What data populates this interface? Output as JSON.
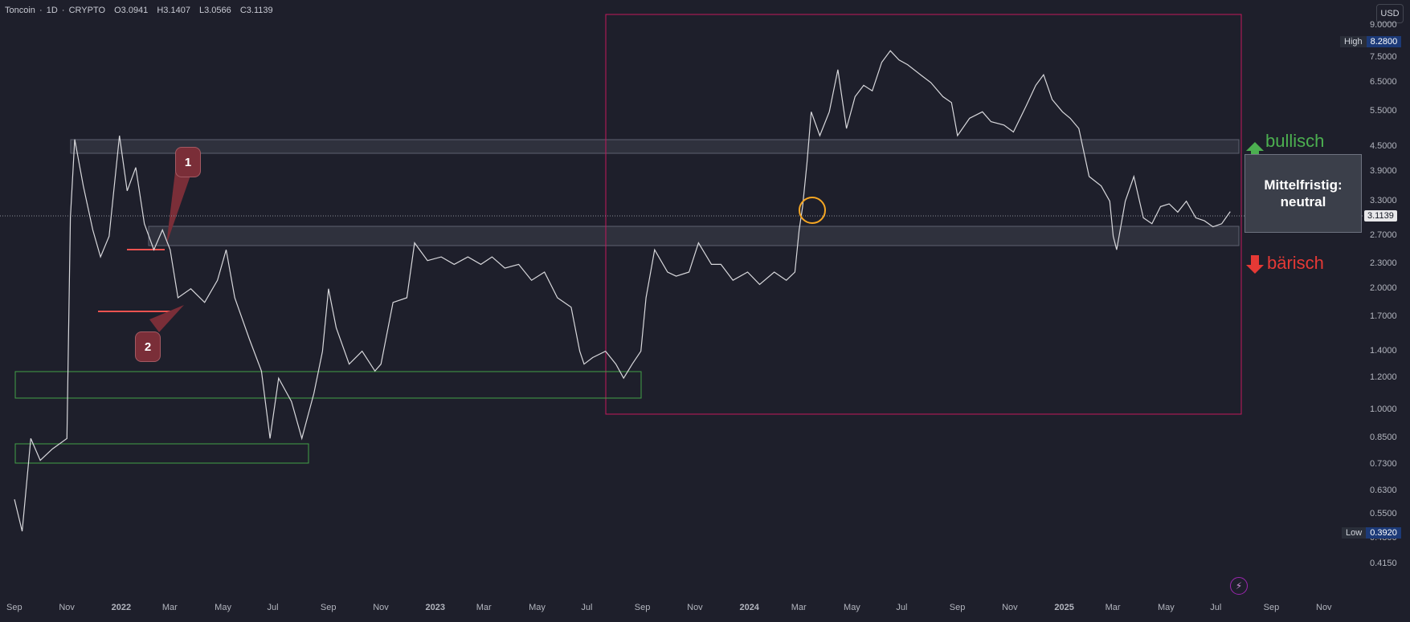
{
  "header": {
    "symbol": "Toncoin",
    "interval": "1D",
    "exchange": "CRYPTO",
    "open": "O3.0941",
    "high": "H3.1407",
    "low": "L3.0566",
    "close": "C3.1139"
  },
  "currency_button": "USD",
  "price_axis": {
    "labels": [
      "9.0000",
      "7.5000",
      "6.5000",
      "5.5000",
      "4.5000",
      "3.9000",
      "3.3000",
      "2.7000",
      "2.3000",
      "2.0000",
      "1.7000",
      "1.4000",
      "1.2000",
      "1.0000",
      "0.8500",
      "0.7300",
      "0.6300",
      "0.5500",
      "0.4800",
      "0.4150"
    ],
    "current_price": "3.1139",
    "high_label": "High",
    "high_value": "8.2800",
    "low_label": "Low",
    "low_value": "0.3920"
  },
  "time_axis": {
    "labels": [
      "Sep",
      "Nov",
      "2022",
      "Mar",
      "May",
      "Jul",
      "Sep",
      "Nov",
      "2023",
      "Mar",
      "May",
      "Jul",
      "Sep",
      "Nov",
      "2024",
      "Mar",
      "May",
      "Jul",
      "Sep",
      "Nov",
      "2025",
      "Mar",
      "May",
      "Jul",
      "Sep",
      "Nov"
    ],
    "bold": [
      "2022",
      "2023",
      "2024",
      "2025"
    ]
  },
  "annotations": {
    "callout_1": "1",
    "callout_2": "2",
    "bullish_label": "bullisch",
    "bearish_label": "bärisch",
    "neutral_line1": "Mittelfristig:",
    "neutral_line2": "neutral"
  },
  "colors": {
    "background": "#1e1f2b",
    "price_line": "#d8d8dc",
    "magenta_box": "#c2185b",
    "green_box": "#43a047",
    "red_line": "#ef5350",
    "orange_circle": "#f5a623",
    "bullish": "#4caf50",
    "bearish": "#e53935"
  },
  "icons": {
    "bullish_arrow": "arrow-up-icon",
    "bearish_arrow": "arrow-down-icon",
    "bolt": "bolt-icon"
  },
  "chart_data": {
    "type": "line",
    "title": "",
    "scale": "log",
    "y_range": [
      0.392,
      9.0
    ],
    "x_range": [
      "2021-09",
      "2025-11"
    ],
    "series": [
      {
        "points": [
          [
            "2021-09-01",
            0.6
          ],
          [
            "2021-09-10",
            0.5
          ],
          [
            "2021-09-20",
            0.85
          ],
          [
            "2021-10-01",
            0.75
          ],
          [
            "2021-10-15",
            0.8
          ],
          [
            "2021-11-01",
            0.85
          ],
          [
            "2021-11-05",
            3.0
          ],
          [
            "2021-11-10",
            4.7
          ],
          [
            "2021-11-20",
            3.6
          ],
          [
            "2021-12-01",
            2.8
          ],
          [
            "2021-12-10",
            2.4
          ],
          [
            "2021-12-20",
            2.7
          ],
          [
            "2022-01-01",
            4.8
          ],
          [
            "2022-01-10",
            3.5
          ],
          [
            "2022-01-20",
            4.0
          ],
          [
            "2022-01-30",
            2.9
          ],
          [
            "2022-02-10",
            2.5
          ],
          [
            "2022-02-20",
            2.8
          ],
          [
            "2022-03-01",
            2.5
          ],
          [
            "2022-03-10",
            1.9
          ],
          [
            "2022-03-25",
            2.0
          ],
          [
            "2022-04-10",
            1.85
          ],
          [
            "2022-04-25",
            2.1
          ],
          [
            "2022-05-05",
            2.5
          ],
          [
            "2022-05-15",
            1.9
          ],
          [
            "2022-06-01",
            1.5
          ],
          [
            "2022-06-15",
            1.25
          ],
          [
            "2022-06-25",
            0.85
          ],
          [
            "2022-07-05",
            1.2
          ],
          [
            "2022-07-20",
            1.05
          ],
          [
            "2022-08-01",
            0.85
          ],
          [
            "2022-08-15",
            1.1
          ],
          [
            "2022-08-25",
            1.4
          ],
          [
            "2022-09-01",
            2.0
          ],
          [
            "2022-09-10",
            1.6
          ],
          [
            "2022-09-25",
            1.3
          ],
          [
            "2022-10-10",
            1.4
          ],
          [
            "2022-10-25",
            1.25
          ],
          [
            "2022-11-01",
            1.3
          ],
          [
            "2022-11-15",
            1.85
          ],
          [
            "2022-12-01",
            1.9
          ],
          [
            "2022-12-10",
            2.6
          ],
          [
            "2022-12-25",
            2.35
          ],
          [
            "2023-01-10",
            2.4
          ],
          [
            "2023-01-25",
            2.3
          ],
          [
            "2023-02-10",
            2.4
          ],
          [
            "2023-02-25",
            2.3
          ],
          [
            "2023-03-10",
            2.4
          ],
          [
            "2023-03-25",
            2.25
          ],
          [
            "2023-04-10",
            2.3
          ],
          [
            "2023-04-25",
            2.1
          ],
          [
            "2023-05-10",
            2.2
          ],
          [
            "2023-05-25",
            1.9
          ],
          [
            "2023-06-10",
            1.8
          ],
          [
            "2023-06-20",
            1.4
          ],
          [
            "2023-06-25",
            1.3
          ],
          [
            "2023-07-05",
            1.35
          ],
          [
            "2023-07-20",
            1.4
          ],
          [
            "2023-08-01",
            1.3
          ],
          [
            "2023-08-10",
            1.2
          ],
          [
            "2023-08-20",
            1.3
          ],
          [
            "2023-08-30",
            1.4
          ],
          [
            "2023-09-05",
            1.9
          ],
          [
            "2023-09-15",
            2.5
          ],
          [
            "2023-09-30",
            2.2
          ],
          [
            "2023-10-10",
            2.15
          ],
          [
            "2023-10-25",
            2.2
          ],
          [
            "2023-11-05",
            2.6
          ],
          [
            "2023-11-20",
            2.3
          ],
          [
            "2023-12-01",
            2.3
          ],
          [
            "2023-12-15",
            2.1
          ],
          [
            "2024-01-01",
            2.2
          ],
          [
            "2024-01-15",
            2.05
          ],
          [
            "2024-02-01",
            2.2
          ],
          [
            "2024-02-15",
            2.1
          ],
          [
            "2024-02-25",
            2.2
          ],
          [
            "2024-03-01",
            2.8
          ],
          [
            "2024-03-05",
            3.2
          ],
          [
            "2024-03-10",
            4.1
          ],
          [
            "2024-03-15",
            5.5
          ],
          [
            "2024-03-25",
            4.8
          ],
          [
            "2024-04-05",
            5.5
          ],
          [
            "2024-04-15",
            7.0
          ],
          [
            "2024-04-25",
            5.0
          ],
          [
            "2024-05-05",
            6.0
          ],
          [
            "2024-05-15",
            6.4
          ],
          [
            "2024-05-25",
            6.2
          ],
          [
            "2024-06-05",
            7.3
          ],
          [
            "2024-06-15",
            7.8
          ],
          [
            "2024-06-25",
            7.4
          ],
          [
            "2024-07-05",
            7.2
          ],
          [
            "2024-07-20",
            6.8
          ],
          [
            "2024-08-01",
            6.5
          ],
          [
            "2024-08-15",
            6.0
          ],
          [
            "2024-08-25",
            5.8
          ],
          [
            "2024-09-01",
            4.8
          ],
          [
            "2024-09-15",
            5.3
          ],
          [
            "2024-09-30",
            5.5
          ],
          [
            "2024-10-10",
            5.2
          ],
          [
            "2024-10-25",
            5.1
          ],
          [
            "2024-11-05",
            4.9
          ],
          [
            "2024-11-20",
            5.7
          ],
          [
            "2024-12-01",
            6.4
          ],
          [
            "2024-12-10",
            6.8
          ],
          [
            "2024-12-20",
            5.9
          ],
          [
            "2025-01-01",
            5.5
          ],
          [
            "2025-01-10",
            5.3
          ],
          [
            "2025-01-20",
            5.0
          ],
          [
            "2025-02-01",
            3.8
          ],
          [
            "2025-02-15",
            3.6
          ],
          [
            "2025-02-25",
            3.3
          ],
          [
            "2025-03-01",
            2.7
          ],
          [
            "2025-03-05",
            2.5
          ],
          [
            "2025-03-15",
            3.3
          ],
          [
            "2025-03-25",
            3.8
          ],
          [
            "2025-04-05",
            3.0
          ],
          [
            "2025-04-15",
            2.9
          ],
          [
            "2025-04-25",
            3.2
          ],
          [
            "2025-05-05",
            3.25
          ],
          [
            "2025-05-15",
            3.1
          ],
          [
            "2025-05-25",
            3.3
          ],
          [
            "2025-06-05",
            3.0
          ],
          [
            "2025-06-15",
            2.95
          ],
          [
            "2025-06-25",
            2.85
          ],
          [
            "2025-07-05",
            2.9
          ],
          [
            "2025-07-15",
            3.11
          ]
        ]
      }
    ]
  }
}
